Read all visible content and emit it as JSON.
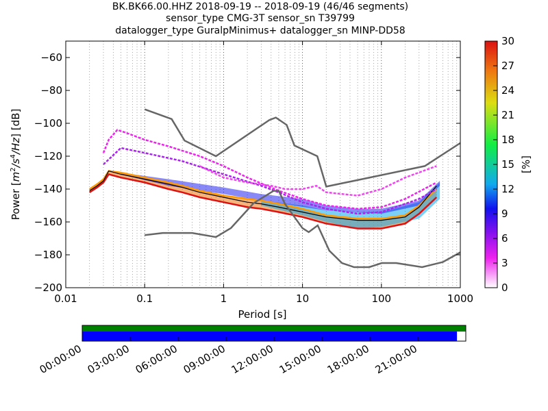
{
  "title_lines": [
    "BK.BK66.00.HHZ   2018-09-19 -- 2018-09-19  (46/46 segments)",
    "sensor_type CMG-3T sensor_sn T39799",
    "datalogger_type GuralpMinimus+ datalogger_sn MINP-DD58"
  ],
  "chart_data": {
    "type": "heatmap",
    "xlabel": "Period [s]",
    "ylabel": "Power [m²/s⁴/Hz] [dB]",
    "ylabel_parts": {
      "prefix": "Power [",
      "unit_a": "m",
      "sup_a": "2",
      "unit_b": "/s",
      "sup_b": "4",
      "unit_c": "/Hz",
      "suffix": "] [dB]"
    },
    "x_scale": "log",
    "xlim": [
      0.01,
      1000
    ],
    "ylim": [
      -200,
      -50
    ],
    "x_ticks": [
      {
        "v": 0.01,
        "label": "0.01"
      },
      {
        "v": 0.1,
        "label": "0.1"
      },
      {
        "v": 1,
        "label": "1"
      },
      {
        "v": 10,
        "label": "10"
      },
      {
        "v": 100,
        "label": "100"
      },
      {
        "v": 1000,
        "label": "1000"
      }
    ],
    "y_ticks": [
      {
        "v": -60,
        "label": "−60"
      },
      {
        "v": -80,
        "label": "−80"
      },
      {
        "v": -100,
        "label": "−100"
      },
      {
        "v": -120,
        "label": "−120"
      },
      {
        "v": -140,
        "label": "−140"
      },
      {
        "v": -160,
        "label": "−160"
      },
      {
        "v": -180,
        "label": "−180"
      },
      {
        "v": -200,
        "label": "−200"
      }
    ],
    "grid": "dotted vertical at period ticks",
    "colorbar": {
      "label": "[%]",
      "range": [
        0,
        30
      ],
      "ticks": [
        "0",
        "3",
        "6",
        "9",
        "12",
        "15",
        "18",
        "21",
        "24",
        "27",
        "30"
      ],
      "colormap": [
        "#ffffff",
        "#ee22ee",
        "#8811ee",
        "#1111ee",
        "#11aaee",
        "#11ee44",
        "#dddd11",
        "#ee7711",
        "#dd1111"
      ]
    },
    "noise_models": {
      "nhnm": [
        [
          0.1,
          -91.5
        ],
        [
          0.22,
          -97.4
        ],
        [
          0.32,
          -110.5
        ],
        [
          0.8,
          -120
        ],
        [
          3.8,
          -98
        ],
        [
          4.6,
          -96.5
        ],
        [
          6.3,
          -101
        ],
        [
          7.9,
          -113.5
        ],
        [
          15.4,
          -120
        ],
        [
          20,
          -138.5
        ],
        [
          354.8,
          -126
        ],
        [
          1000,
          -112
        ]
      ],
      "nlnm": [
        [
          0.1,
          -168
        ],
        [
          0.17,
          -166.7
        ],
        [
          0.4,
          -166.7
        ],
        [
          0.8,
          -169.2
        ],
        [
          1.24,
          -163.7
        ],
        [
          2.4,
          -148.6
        ],
        [
          4.3,
          -141.1
        ],
        [
          5.0,
          -141.1
        ],
        [
          6.0,
          -149
        ],
        [
          10,
          -163.8
        ],
        [
          12,
          -166.2
        ],
        [
          15.6,
          -162.1
        ],
        [
          21.9,
          -177.5
        ],
        [
          31.6,
          -185
        ],
        [
          45,
          -187.5
        ],
        [
          70,
          -187.5
        ],
        [
          101,
          -185
        ],
        [
          154,
          -185
        ],
        [
          328,
          -187.5
        ],
        [
          600,
          -184.4
        ],
        [
          1000,
          -178.5
        ]
      ]
    },
    "series": [
      {
        "name": "",
        "role": "main-band-high",
        "color": "#ff9900",
        "values": [
          [
            0.02,
            -140
          ],
          [
            0.025,
            -137
          ],
          [
            0.03,
            -134
          ],
          [
            0.035,
            -129
          ],
          [
            0.05,
            -130
          ],
          [
            0.1,
            -133
          ],
          [
            0.2,
            -136
          ],
          [
            0.3,
            -138
          ],
          [
            0.5,
            -141
          ],
          [
            1,
            -144
          ],
          [
            2,
            -146
          ],
          [
            3,
            -147
          ],
          [
            5,
            -149
          ],
          [
            10,
            -152
          ],
          [
            20,
            -156
          ],
          [
            50,
            -158
          ],
          [
            100,
            -158
          ],
          [
            200,
            -156
          ],
          [
            300,
            -150
          ],
          [
            500,
            -140
          ]
        ]
      },
      {
        "name": "",
        "role": "main-band-low",
        "color": "#dd1111",
        "values": [
          [
            0.02,
            -142
          ],
          [
            0.025,
            -139
          ],
          [
            0.03,
            -136
          ],
          [
            0.035,
            -131
          ],
          [
            0.05,
            -133
          ],
          [
            0.1,
            -136
          ],
          [
            0.2,
            -140
          ],
          [
            0.3,
            -142
          ],
          [
            0.5,
            -145
          ],
          [
            1,
            -148
          ],
          [
            2,
            -151
          ],
          [
            3,
            -152
          ],
          [
            5,
            -154
          ],
          [
            10,
            -157
          ],
          [
            20,
            -161
          ],
          [
            50,
            -164
          ],
          [
            100,
            -164
          ],
          [
            200,
            -161
          ],
          [
            300,
            -155
          ],
          [
            500,
            -145
          ]
        ]
      },
      {
        "name": "",
        "role": "median",
        "color": "#000000",
        "values": [
          [
            0.02,
            -141
          ],
          [
            0.025,
            -138
          ],
          [
            0.03,
            -135
          ],
          [
            0.035,
            -129
          ],
          [
            0.05,
            -131
          ],
          [
            0.1,
            -134
          ],
          [
            0.2,
            -137
          ],
          [
            0.3,
            -139
          ],
          [
            0.5,
            -142
          ],
          [
            1,
            -145
          ],
          [
            2,
            -148
          ],
          [
            3,
            -149
          ],
          [
            5,
            -151
          ],
          [
            10,
            -154
          ],
          [
            20,
            -157
          ],
          [
            50,
            -159
          ],
          [
            100,
            -159
          ],
          [
            200,
            -157
          ],
          [
            300,
            -151
          ],
          [
            500,
            -138
          ]
        ]
      },
      {
        "name": "",
        "role": "upper-tail-1",
        "color": "#ee22ee",
        "values": [
          [
            0.03,
            -118
          ],
          [
            0.035,
            -110
          ],
          [
            0.045,
            -104
          ],
          [
            0.06,
            -106
          ],
          [
            0.1,
            -110
          ],
          [
            0.2,
            -114
          ],
          [
            0.5,
            -120
          ],
          [
            1,
            -126
          ],
          [
            2,
            -133
          ],
          [
            5,
            -141
          ],
          [
            10,
            -146
          ],
          [
            20,
            -150
          ],
          [
            50,
            -152
          ],
          [
            100,
            -151
          ],
          [
            200,
            -146
          ],
          [
            500,
            -136
          ]
        ]
      },
      {
        "name": "",
        "role": "upper-tail-2",
        "color": "#aa22ee",
        "values": [
          [
            0.03,
            -125
          ],
          [
            0.05,
            -115
          ],
          [
            0.1,
            -118
          ],
          [
            0.3,
            -123
          ],
          [
            1,
            -131
          ],
          [
            3,
            -138
          ],
          [
            5,
            -142
          ],
          [
            10,
            -148
          ],
          [
            20,
            -152
          ],
          [
            50,
            -155
          ],
          [
            100,
            -154
          ],
          [
            300,
            -146
          ],
          [
            500,
            -140
          ]
        ]
      },
      {
        "name": "",
        "role": "upper-tail-3",
        "color": "#ee44ee",
        "values": [
          [
            0.5,
            -126
          ],
          [
            1,
            -133
          ],
          [
            2,
            -136
          ],
          [
            4,
            -138
          ],
          [
            6,
            -140
          ],
          [
            10,
            -140
          ],
          [
            15,
            -138
          ],
          [
            20,
            -142
          ],
          [
            50,
            -144
          ],
          [
            100,
            -140
          ],
          [
            200,
            -133
          ],
          [
            500,
            -126
          ]
        ]
      }
    ]
  },
  "time_bar": {
    "labels": [
      "00:00:00",
      "03:00:00",
      "06:00:00",
      "09:00:00",
      "12:00:00",
      "15:00:00",
      "18:00:00",
      "21:00:00"
    ],
    "top_color": "#008000",
    "bottom_color": "#0000ff",
    "coverage_fraction": 0.977
  }
}
